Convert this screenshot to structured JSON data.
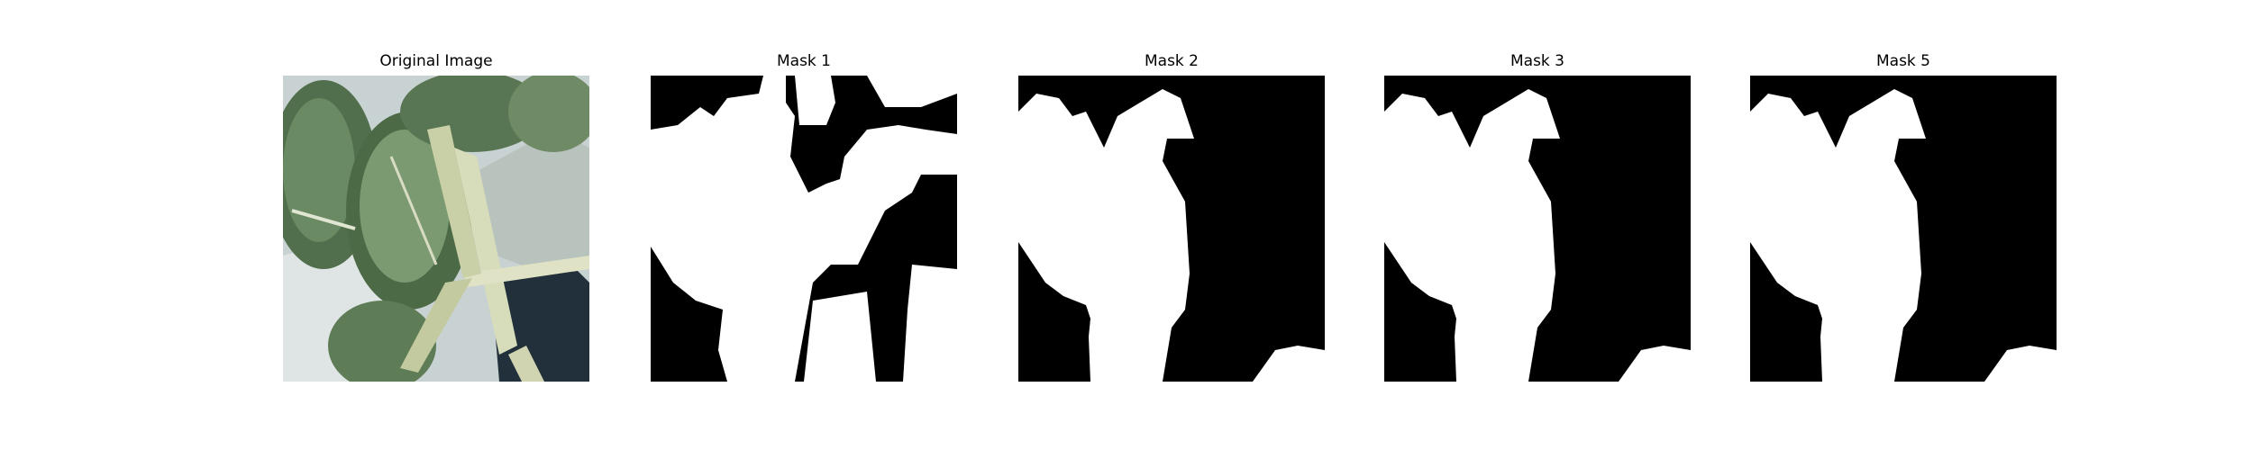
{
  "figure": {
    "panels": [
      {
        "title": "Original Image",
        "kind": "photo"
      },
      {
        "title": "Mask 1",
        "kind": "mask"
      },
      {
        "title": "Mask 2",
        "kind": "mask"
      },
      {
        "title": "Mask 3",
        "kind": "mask"
      },
      {
        "title": "Mask 5",
        "kind": "mask"
      }
    ]
  }
}
